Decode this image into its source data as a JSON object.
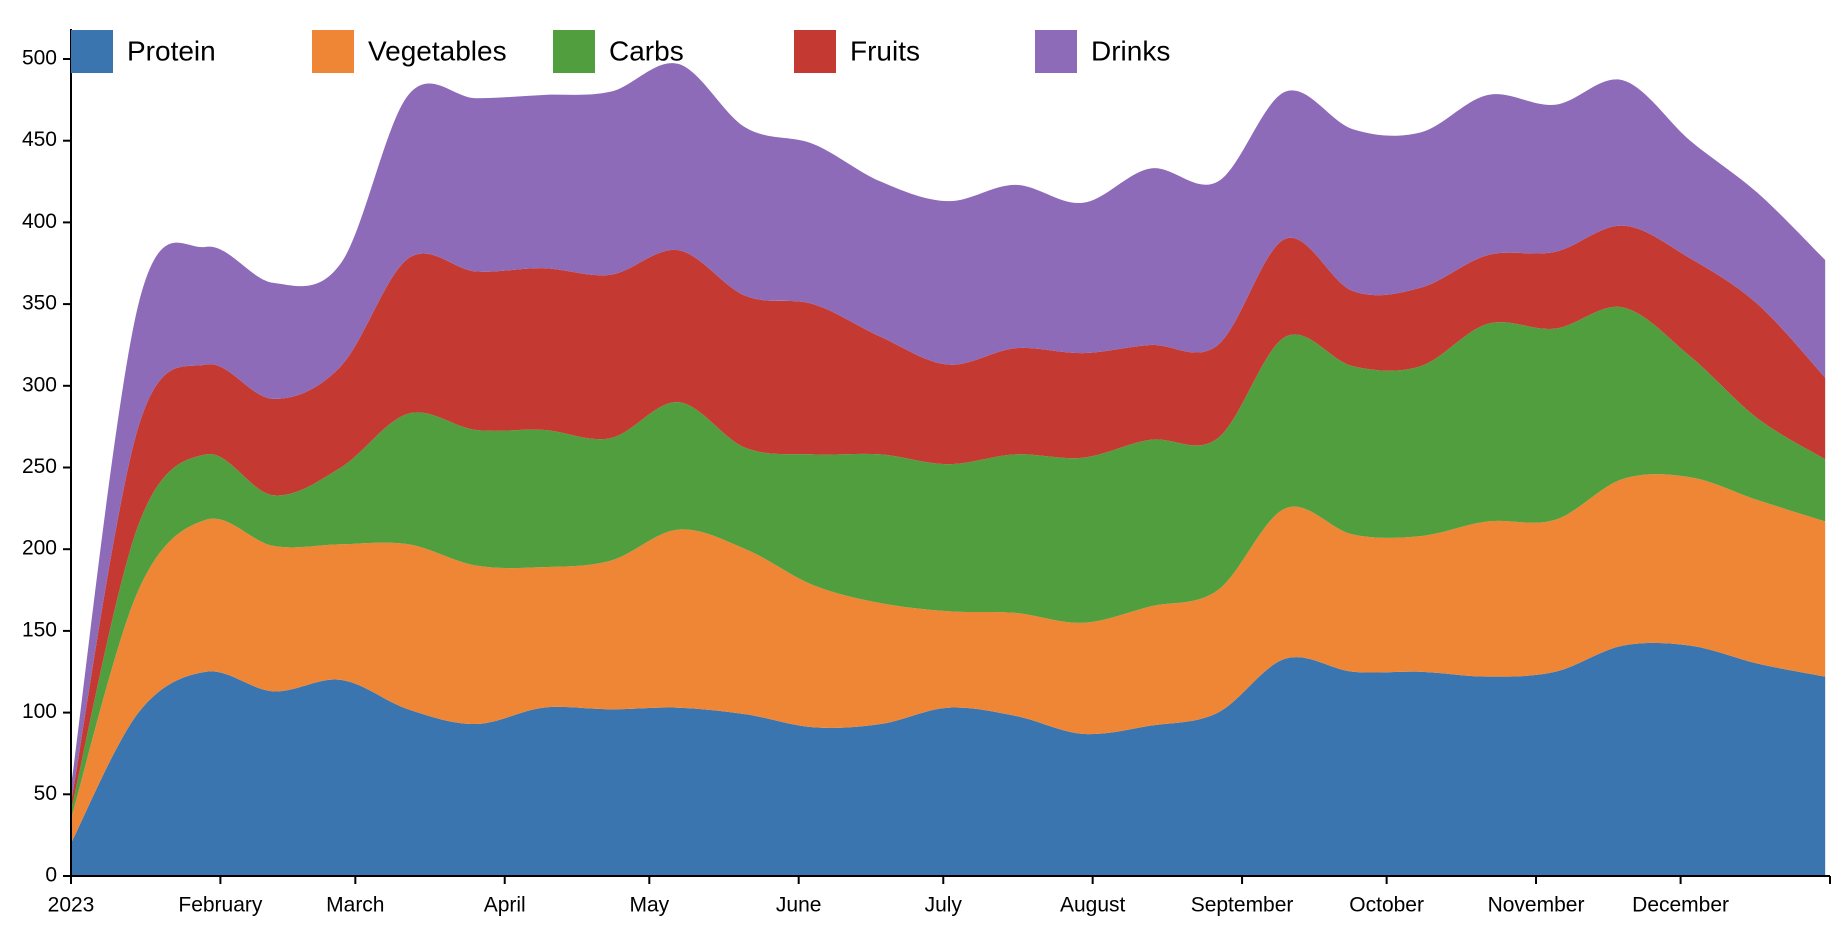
{
  "chart_data": {
    "type": "stacked-area",
    "x": [
      "2023-01-01",
      "2023-01-15",
      "2023-01-29",
      "2023-02-12",
      "2023-02-26",
      "2023-03-12",
      "2023-03-26",
      "2023-04-09",
      "2023-04-23",
      "2023-05-07",
      "2023-05-21",
      "2023-06-04",
      "2023-06-18",
      "2023-07-02",
      "2023-07-16",
      "2023-07-30",
      "2023-08-13",
      "2023-08-27",
      "2023-09-10",
      "2023-09-24",
      "2023-10-08",
      "2023-10-22",
      "2023-11-05",
      "2023-11-19",
      "2023-12-03",
      "2023-12-17",
      "2023-12-31"
    ],
    "series": [
      {
        "name": "Protein",
        "color": "#3b75af",
        "values": [
          20,
          100,
          125,
          113,
          120,
          102,
          93,
          103,
          102,
          103,
          99,
          91,
          93,
          103,
          98,
          87,
          92,
          100,
          133,
          125,
          125,
          122,
          125,
          141,
          141,
          130,
          122
        ]
      },
      {
        "name": "Vegetables",
        "color": "#ef8636",
        "values": [
          15,
          75,
          93,
          89,
          83,
          101,
          97,
          86,
          91,
          109,
          101,
          87,
          74,
          59,
          63,
          68,
          73,
          75,
          92,
          84,
          83,
          95,
          93,
          102,
          103,
          100,
          95
        ]
      },
      {
        "name": "Carbs",
        "color": "#519e3e",
        "values": [
          5,
          40,
          40,
          31,
          47,
          80,
          83,
          84,
          75,
          78,
          62,
          80,
          91,
          90,
          97,
          101,
          102,
          93,
          105,
          103,
          104,
          121,
          117,
          105,
          74,
          50,
          38
        ]
      },
      {
        "name": "Fruits",
        "color": "#c43a32",
        "values": [
          5,
          60,
          55,
          59,
          62,
          95,
          97,
          99,
          100,
          93,
          93,
          92,
          72,
          61,
          65,
          64,
          58,
          57,
          60,
          46,
          48,
          42,
          47,
          50,
          60,
          70,
          50
        ]
      },
      {
        "name": "Drinks",
        "color": "#8d6bb8",
        "values": [
          10,
          75,
          72,
          71,
          63,
          100,
          106,
          106,
          112,
          114,
          103,
          98,
          95,
          100,
          100,
          92,
          108,
          100,
          90,
          99,
          95,
          98,
          90,
          89,
          72,
          68,
          72
        ]
      }
    ],
    "xlim": [
      "2023-01-01",
      "2024-01-01"
    ],
    "xticks": [
      {
        "value": "2023-01-01",
        "label": "2023"
      },
      {
        "value": "2023-02-01",
        "label": "February"
      },
      {
        "value": "2023-03-01",
        "label": "March"
      },
      {
        "value": "2023-04-01",
        "label": "April"
      },
      {
        "value": "2023-05-01",
        "label": "May"
      },
      {
        "value": "2023-06-01",
        "label": "June"
      },
      {
        "value": "2023-07-01",
        "label": "July"
      },
      {
        "value": "2023-08-01",
        "label": "August"
      },
      {
        "value": "2023-09-01",
        "label": "September"
      },
      {
        "value": "2023-10-01",
        "label": "October"
      },
      {
        "value": "2023-11-01",
        "label": "November"
      },
      {
        "value": "2023-12-01",
        "label": "December"
      },
      {
        "value": "2024-01-01",
        "label": null
      }
    ],
    "ylim": [
      0,
      500
    ],
    "yticks": [
      0,
      50,
      100,
      150,
      200,
      250,
      300,
      350,
      400,
      450,
      500
    ],
    "legend": "top"
  }
}
